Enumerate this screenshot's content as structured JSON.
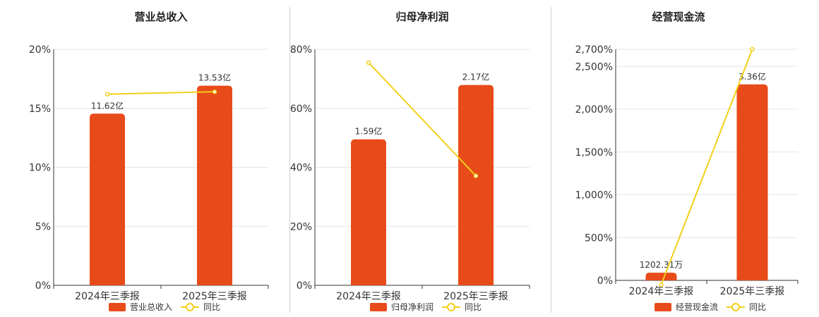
{
  "colors": {
    "bar": "#E84B1A",
    "line": "#F2CF1B",
    "grid": "#E3E3EE",
    "axis": "#333333",
    "text": "#333333",
    "divider": "#CFCFCF"
  },
  "legend": {
    "line_label": "同比"
  },
  "chart_data": [
    {
      "type": "bar",
      "title": "营业总收入",
      "categories": [
        "2024年三季报",
        "2025年三季报"
      ],
      "series": [
        {
          "name": "营业总收入",
          "type": "bar",
          "values": [
            14.55,
            16.92
          ],
          "labels": [
            "11.62亿",
            "13.53亿"
          ]
        },
        {
          "name": "同比",
          "type": "line",
          "values": [
            16.2,
            16.4
          ]
        }
      ],
      "ylim": [
        0,
        20
      ],
      "yticks": [
        "0%",
        "5%",
        "10%",
        "15%",
        "20%"
      ],
      "ytick_values": [
        0,
        5,
        10,
        15,
        20
      ],
      "grid": true,
      "legend_position": "bottom"
    },
    {
      "type": "bar",
      "title": "归母净利润",
      "categories": [
        "2024年三季报",
        "2025年三季报"
      ],
      "series": [
        {
          "name": "归母净利润",
          "type": "bar",
          "values": [
            49.5,
            67.9
          ],
          "labels": [
            "1.59亿",
            "2.17亿"
          ]
        },
        {
          "name": "同比",
          "type": "line",
          "values": [
            75.5,
            37.1
          ]
        }
      ],
      "ylim": [
        0,
        80
      ],
      "yticks": [
        "0%",
        "20%",
        "40%",
        "60%",
        "80%"
      ],
      "ytick_values": [
        0,
        20,
        40,
        60,
        80
      ],
      "grid": true,
      "legend_position": "bottom"
    },
    {
      "type": "bar",
      "title": "经营现金流",
      "categories": [
        "2024年三季报",
        "2025年三季报"
      ],
      "series": [
        {
          "name": "经营现金流",
          "type": "bar",
          "values": [
            90,
            2290
          ],
          "labels": [
            "1202.31万",
            "3.36亿"
          ]
        },
        {
          "name": "同比",
          "type": "line",
          "values": [
            -50,
            2700
          ]
        }
      ],
      "ylim": [
        0,
        2700
      ],
      "yticks": [
        "0%",
        "500%",
        "1,000%",
        "1,500%",
        "2,000%",
        "2,500%",
        "2,700%"
      ],
      "ytick_values": [
        0,
        500,
        1000,
        1500,
        2000,
        2500,
        2700
      ],
      "grid": true,
      "legend_position": "bottom"
    }
  ]
}
